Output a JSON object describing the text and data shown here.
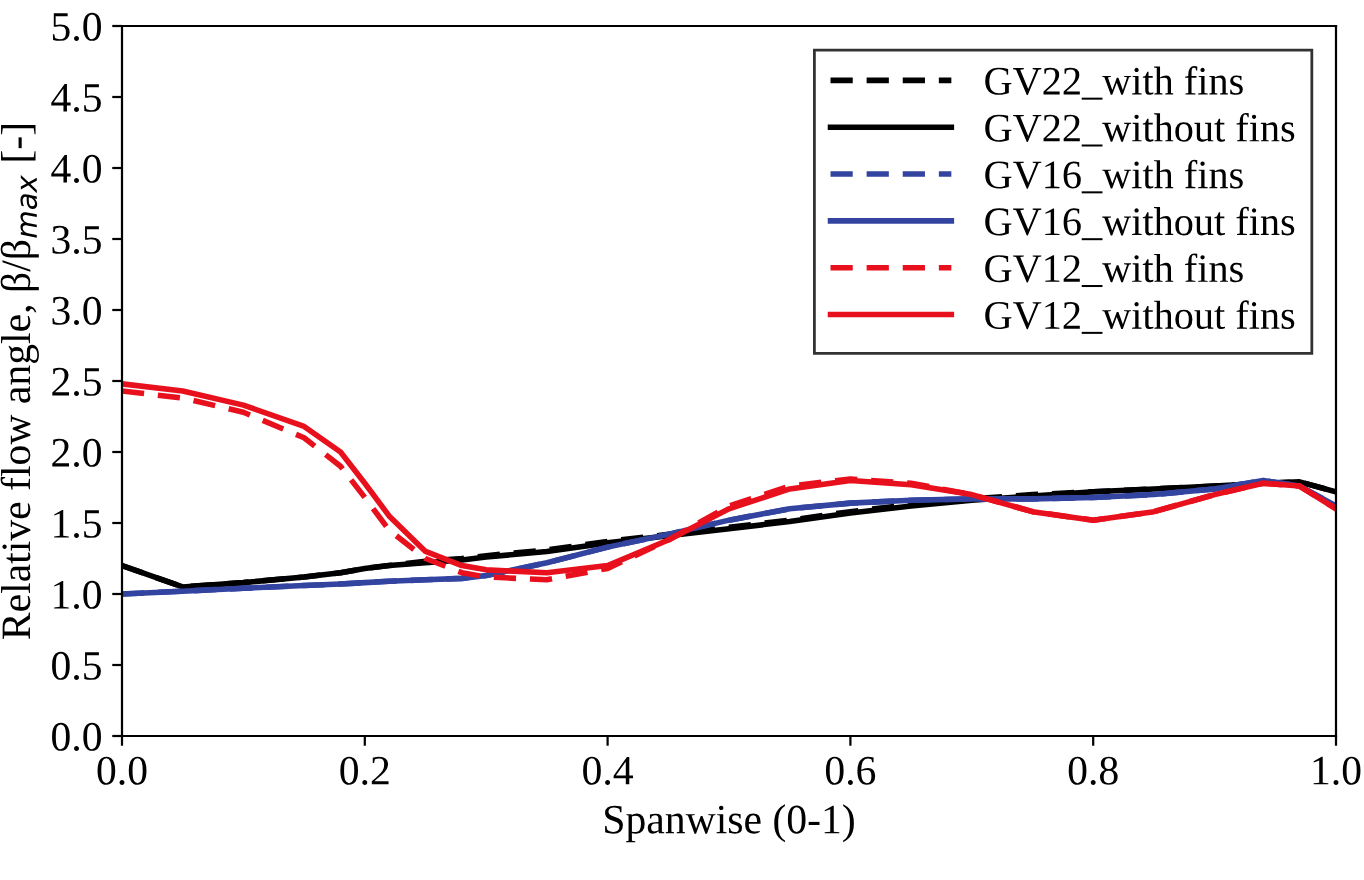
{
  "chart_data": {
    "type": "line",
    "xlabel": "Spanwise (0-1)",
    "ylabel": "Relative flow angle, β/β$_{max}$ [-]",
    "xlim": [
      0,
      1
    ],
    "ylim": [
      0,
      5
    ],
    "xticks": [
      {
        "value": 0,
        "label": "0.0"
      },
      0.2,
      0.4,
      0.6,
      0.8,
      {
        "value": 1,
        "label": "1.0"
      }
    ],
    "yticks": [
      {
        "value": 0,
        "label": "0.0"
      },
      0.5,
      {
        "value": 1,
        "label": "1.0"
      },
      1.5,
      {
        "value": 2,
        "label": "2.0"
      },
      2.5,
      {
        "value": 3,
        "label": "3.0"
      },
      3.5,
      {
        "value": 4,
        "label": "4.0"
      },
      4.5,
      {
        "value": 5,
        "label": "5.0"
      }
    ],
    "grid": false,
    "legend": "top right",
    "marker": "none",
    "x": [
      0,
      0.05,
      0.1,
      0.15,
      0.18,
      0.2,
      0.22,
      0.25,
      0.28,
      0.3,
      0.35,
      0.4,
      0.45,
      0.5,
      0.55,
      0.6,
      0.65,
      0.7,
      0.75,
      0.8,
      0.85,
      0.9,
      0.94,
      0.97,
      1.0
    ],
    "series": [
      {
        "name": "GV22_with fins",
        "color": "#000000",
        "line_style": "dashed",
        "values": [
          1.2,
          1.05,
          1.08,
          1.12,
          1.15,
          1.18,
          1.2,
          1.23,
          1.25,
          1.27,
          1.31,
          1.37,
          1.42,
          1.47,
          1.52,
          1.58,
          1.63,
          1.67,
          1.7,
          1.72,
          1.74,
          1.76,
          1.78,
          1.79,
          1.72
        ]
      },
      {
        "name": "GV22_without fins",
        "color": "#000000",
        "line_style": "solid",
        "values": [
          1.2,
          1.05,
          1.08,
          1.12,
          1.15,
          1.18,
          1.2,
          1.22,
          1.24,
          1.26,
          1.3,
          1.36,
          1.41,
          1.46,
          1.51,
          1.57,
          1.62,
          1.66,
          1.69,
          1.72,
          1.74,
          1.76,
          1.78,
          1.79,
          1.72
        ]
      },
      {
        "name": "GV16_with fins",
        "color": "#3344a0",
        "line_style": "dashed",
        "values": [
          1.0,
          1.02,
          1.04,
          1.06,
          1.07,
          1.08,
          1.09,
          1.1,
          1.11,
          1.13,
          1.22,
          1.33,
          1.42,
          1.52,
          1.6,
          1.64,
          1.66,
          1.67,
          1.67,
          1.68,
          1.7,
          1.74,
          1.8,
          1.76,
          1.62
        ]
      },
      {
        "name": "GV16_without fins",
        "color": "#3344a0",
        "line_style": "solid",
        "values": [
          1.0,
          1.02,
          1.04,
          1.06,
          1.07,
          1.08,
          1.09,
          1.1,
          1.11,
          1.13,
          1.22,
          1.33,
          1.42,
          1.52,
          1.6,
          1.64,
          1.66,
          1.67,
          1.67,
          1.68,
          1.7,
          1.74,
          1.8,
          1.76,
          1.62
        ]
      },
      {
        "name": "GV12_with fins",
        "color": "#e8101c",
        "line_style": "dashed",
        "values": [
          2.43,
          2.38,
          2.28,
          2.1,
          1.9,
          1.68,
          1.45,
          1.25,
          1.15,
          1.12,
          1.1,
          1.18,
          1.38,
          1.62,
          1.76,
          1.81,
          1.78,
          1.7,
          1.58,
          1.52,
          1.58,
          1.7,
          1.78,
          1.76,
          1.6
        ]
      },
      {
        "name": "GV12_without fins",
        "color": "#e8101c",
        "line_style": "solid",
        "values": [
          2.48,
          2.43,
          2.33,
          2.18,
          2.0,
          1.78,
          1.55,
          1.3,
          1.2,
          1.17,
          1.15,
          1.2,
          1.38,
          1.6,
          1.74,
          1.8,
          1.77,
          1.7,
          1.58,
          1.52,
          1.58,
          1.7,
          1.78,
          1.76,
          1.6
        ]
      }
    ]
  }
}
